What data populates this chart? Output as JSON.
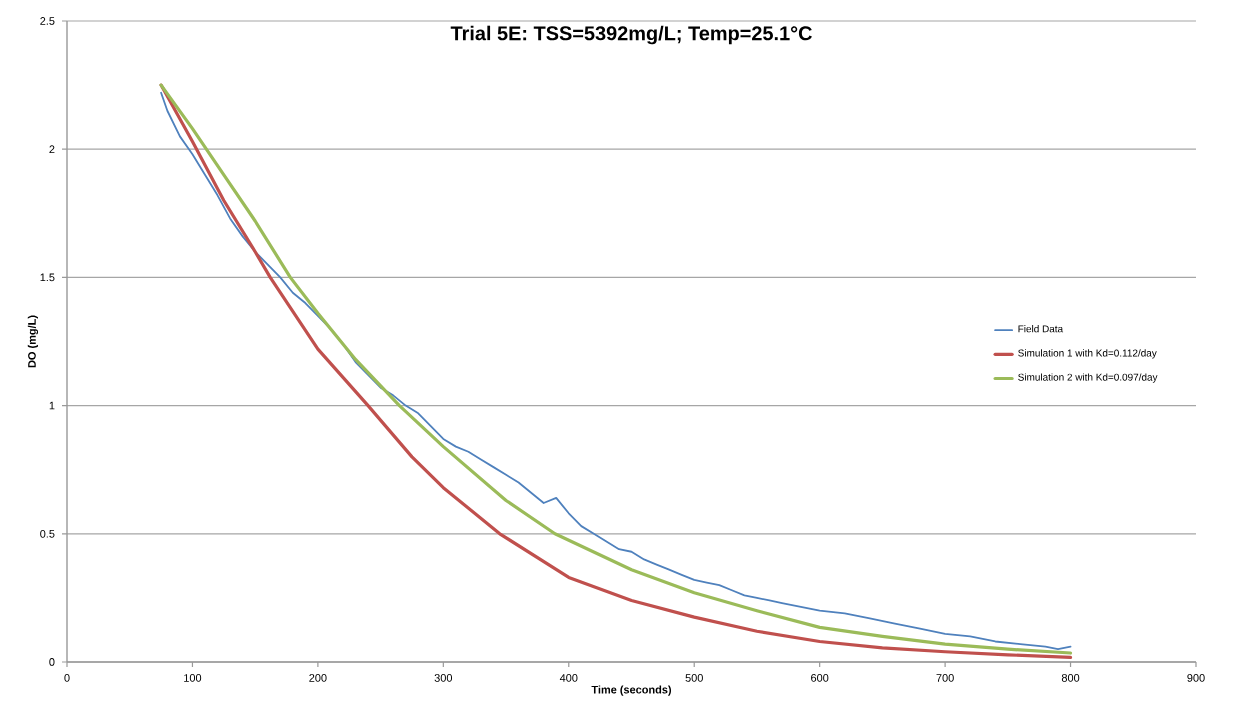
{
  "chart_data": {
    "type": "line",
    "title": "Trial 5E: TSS=5392mg/L; Temp=25.1°C",
    "xlabel": "Time (seconds)",
    "ylabel": "DO (mg/L)",
    "xlim": [
      0,
      900
    ],
    "xticks": [
      0,
      100,
      200,
      300,
      400,
      500,
      600,
      700,
      800,
      900
    ],
    "ylim": [
      0,
      2.5
    ],
    "yticks": [
      0,
      0.5,
      1,
      1.5,
      2,
      2.5
    ],
    "grid": "y",
    "legend": "right",
    "marker": "none",
    "line_style": "solid",
    "series": [
      {
        "name": "Field Data",
        "color": "#4f81bd",
        "x": [
          75,
          80,
          90,
          100,
          110,
          120,
          130,
          140,
          150,
          160,
          170,
          180,
          190,
          200,
          210,
          220,
          230,
          240,
          250,
          260,
          270,
          280,
          290,
          300,
          310,
          320,
          330,
          340,
          350,
          360,
          370,
          380,
          390,
          400,
          410,
          420,
          430,
          440,
          450,
          460,
          470,
          480,
          490,
          500,
          510,
          520,
          530,
          540,
          550,
          560,
          570,
          580,
          590,
          600,
          620,
          640,
          660,
          680,
          700,
          720,
          740,
          760,
          780,
          790,
          800
        ],
        "values": [
          2.22,
          2.15,
          2.05,
          1.98,
          1.9,
          1.82,
          1.73,
          1.66,
          1.6,
          1.55,
          1.5,
          1.44,
          1.4,
          1.35,
          1.3,
          1.24,
          1.17,
          1.12,
          1.07,
          1.04,
          1.0,
          0.97,
          0.92,
          0.87,
          0.84,
          0.82,
          0.79,
          0.76,
          0.73,
          0.7,
          0.66,
          0.62,
          0.64,
          0.58,
          0.53,
          0.5,
          0.47,
          0.44,
          0.43,
          0.4,
          0.38,
          0.36,
          0.34,
          0.32,
          0.31,
          0.3,
          0.28,
          0.26,
          0.25,
          0.24,
          0.23,
          0.22,
          0.21,
          0.2,
          0.19,
          0.17,
          0.15,
          0.13,
          0.11,
          0.1,
          0.08,
          0.07,
          0.06,
          0.05,
          0.06
        ]
      },
      {
        "name": "Simulation 1 with Kd=0.112/day",
        "color": "#c0504d",
        "x": [
          75,
          100,
          125,
          150,
          162,
          200,
          240,
          275,
          300,
          345,
          400,
          450,
          500,
          550,
          600,
          650,
          700,
          750,
          800
        ],
        "values": [
          2.25,
          2.03,
          1.8,
          1.6,
          1.5,
          1.22,
          1.0,
          0.8,
          0.68,
          0.5,
          0.33,
          0.24,
          0.175,
          0.12,
          0.08,
          0.055,
          0.04,
          0.028,
          0.018
        ]
      },
      {
        "name": "Simulation 2 with Kd=0.097/day",
        "color": "#9bbb59",
        "x": [
          75,
          100,
          125,
          150,
          178,
          200,
          230,
          265,
          300,
          350,
          389,
          450,
          500,
          550,
          600,
          650,
          700,
          750,
          800
        ],
        "values": [
          2.25,
          2.08,
          1.9,
          1.72,
          1.5,
          1.36,
          1.18,
          1.0,
          0.84,
          0.63,
          0.5,
          0.36,
          0.27,
          0.2,
          0.135,
          0.1,
          0.07,
          0.05,
          0.035
        ]
      }
    ]
  }
}
